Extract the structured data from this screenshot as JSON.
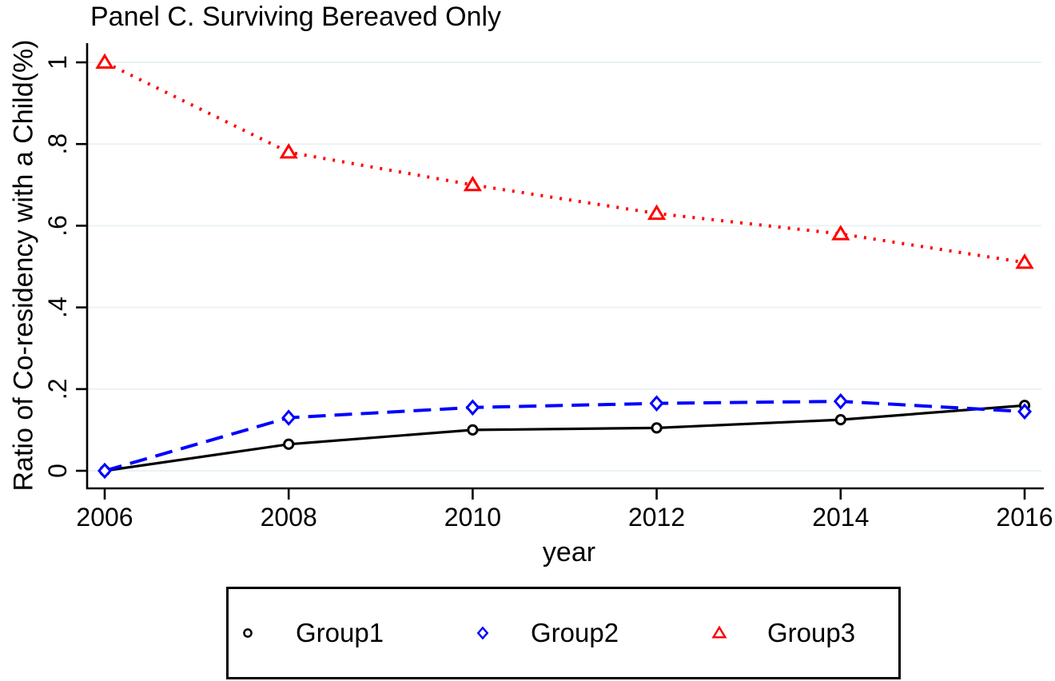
{
  "title": "Panel C. Surviving Bereaved Only",
  "axes": {
    "x_label": "year",
    "y_label": "Ratio of Co-residency with a Child(%)"
  },
  "chart_data": {
    "type": "line",
    "title": "Panel C. Surviving Bereaved Only",
    "xlabel": "year",
    "ylabel": "Ratio of Co-residency with a Child(%)",
    "x": [
      2006,
      2008,
      2010,
      2012,
      2014,
      2016
    ],
    "xtick_labels": [
      "2006",
      "2008",
      "2010",
      "2012",
      "2014",
      "2016"
    ],
    "xlim": [
      2006,
      2016
    ],
    "ylim": [
      0,
      1
    ],
    "yticks": [
      0,
      0.2,
      0.4,
      0.6,
      0.8,
      1
    ],
    "ytick_labels": [
      "0",
      ".2",
      ".4",
      ".6",
      ".8",
      "1"
    ],
    "ytick_label_angle": "vertical",
    "grid": "horizontal",
    "gridline_color": "#eaf2f3",
    "axis_color": "#000000",
    "legend_position": "bottom-box",
    "series": [
      {
        "name": "Group1",
        "color": "#000000",
        "line_style": "solid",
        "marker": "circle",
        "values": [
          0,
          0.065,
          0.1,
          0.105,
          0.125,
          0.16
        ]
      },
      {
        "name": "Group2",
        "color": "#0000ff",
        "line_style": "dashed",
        "marker": "diamond",
        "values": [
          0,
          0.13,
          0.155,
          0.165,
          0.17,
          0.145
        ]
      },
      {
        "name": "Group3",
        "color": "#ff0000",
        "line_style": "dotted",
        "marker": "triangle",
        "values": [
          1.0,
          0.78,
          0.7,
          0.63,
          0.58,
          0.51
        ]
      }
    ]
  }
}
